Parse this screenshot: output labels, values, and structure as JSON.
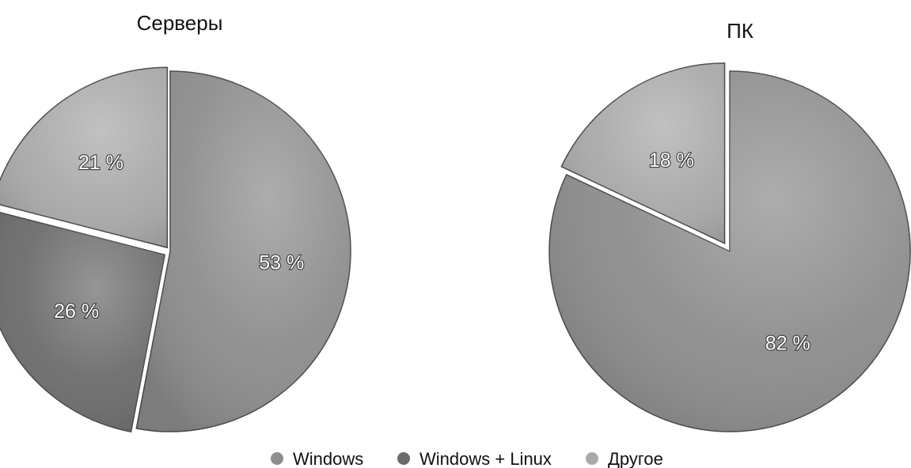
{
  "chart_data": [
    {
      "type": "pie",
      "title": "Серверы",
      "categories": [
        "Windows",
        "Windows + Linux",
        "Другое"
      ],
      "values": [
        53,
        26,
        21
      ],
      "labels": [
        "53 %",
        "26 %",
        "21 %"
      ]
    },
    {
      "type": "pie",
      "title": "ПК",
      "categories": [
        "Windows",
        "Другое"
      ],
      "values": [
        82,
        18
      ],
      "labels": [
        "82 %",
        "18 %"
      ]
    }
  ],
  "legend": {
    "position": "bottom-center",
    "items": [
      {
        "label": "Windows",
        "color": "#8d8d8d"
      },
      {
        "label": "Windows + Linux",
        "color": "#6c6c6c"
      },
      {
        "label": "Другое",
        "color": "#a9a9a9"
      }
    ]
  },
  "colors": {
    "Windows": "#8d8d8d",
    "Windows + Linux": "#6c6c6c",
    "Другое": "#a9a9a9"
  }
}
